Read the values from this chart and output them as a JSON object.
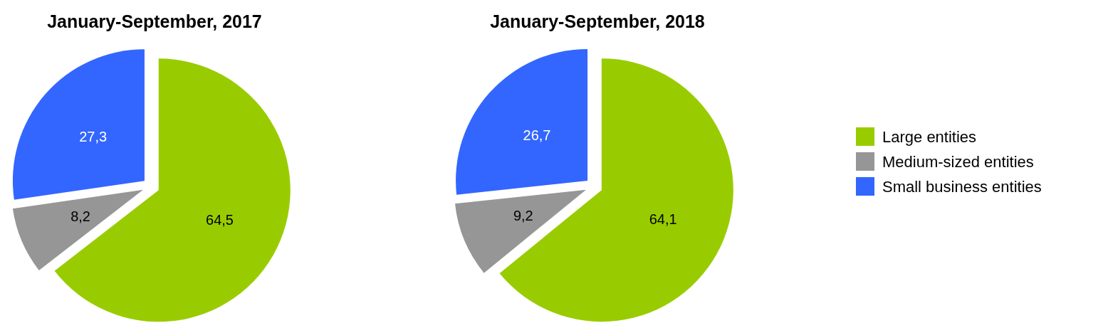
{
  "chart_data": [
    {
      "type": "pie",
      "title": "January-September, 2017",
      "categories": [
        null,
        null,
        null
      ],
      "values": [
        64.5,
        8.2,
        27.3
      ],
      "colors": [
        "#99cc00",
        "#969696",
        "#3366ff"
      ],
      "value_labels": [
        "64,5",
        "8,2",
        "27,3"
      ]
    },
    {
      "type": "pie",
      "title": "January-September, 2018",
      "categories": [
        "Large entities",
        "Medium-sized entities",
        "Small business entities"
      ],
      "values": [
        64.1,
        9.2,
        26.7
      ],
      "colors": [
        "#99cc00",
        "#969696",
        "#3366ff"
      ],
      "value_labels": [
        "64,1",
        "9,2",
        "26,7"
      ],
      "legend": "right"
    }
  ]
}
